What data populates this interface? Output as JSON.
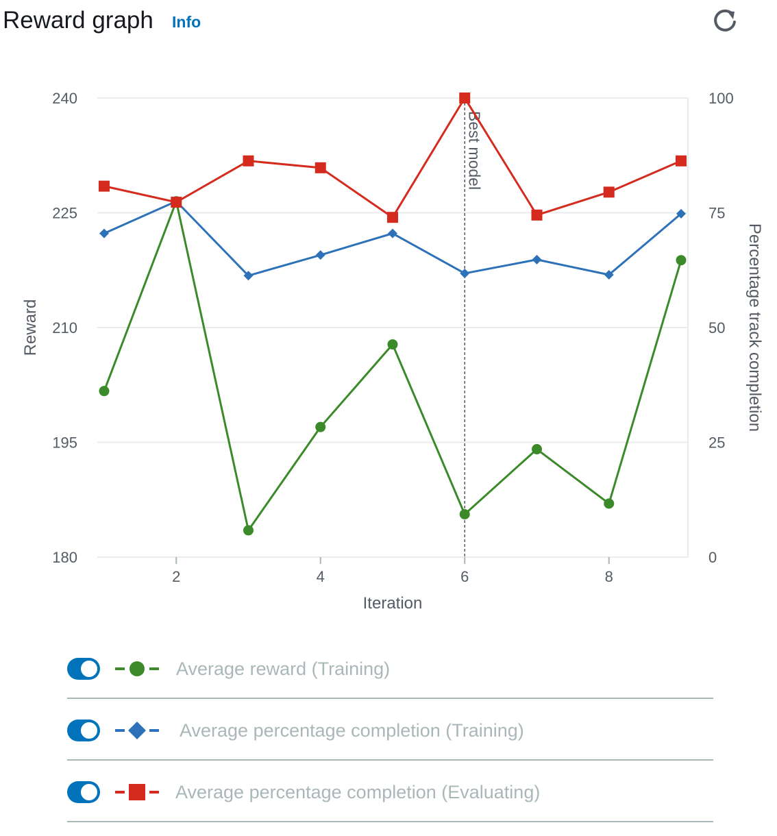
{
  "header": {
    "title": "Reward graph",
    "info_label": "Info",
    "refresh_icon": "refresh-icon"
  },
  "colors": {
    "reward_training": "#3b8a2a",
    "completion_training": "#2d72b8",
    "completion_evaluating": "#d52b1e",
    "toggle_on": "#0073bb",
    "legend_text": "#aab7b8",
    "grid": "#e9ebed",
    "axis_text": "#545b64"
  },
  "chart_data": {
    "type": "line",
    "x": [
      1,
      2,
      3,
      4,
      5,
      6,
      7,
      8,
      9
    ],
    "xlabel": "Iteration",
    "ylabel": "Reward",
    "y2label": "Percentage track completion",
    "xlim": [
      1,
      9
    ],
    "ylim": [
      180,
      240
    ],
    "y2lim": [
      0,
      100
    ],
    "xticks": [
      2,
      4,
      6,
      8
    ],
    "yticks": [
      180,
      195,
      210,
      225,
      240
    ],
    "y2ticks": [
      0,
      25,
      50,
      75,
      100
    ],
    "grid": true,
    "annotation": {
      "x": 6,
      "label": "Best model"
    },
    "series": [
      {
        "name": "Average reward (Training)",
        "axis": "left",
        "marker": "circle",
        "values": [
          201.7,
          226.5,
          183.5,
          197,
          207.8,
          185.6,
          194.1,
          187,
          218.8
        ]
      },
      {
        "name": "Average percentage completion (Training)",
        "axis": "right",
        "marker": "diamond",
        "values": [
          70.5,
          77.5,
          61.3,
          65.8,
          70.5,
          61.8,
          64.8,
          61.5,
          74.8
        ]
      },
      {
        "name": "Average percentage completion (Evaluating)",
        "axis": "right",
        "marker": "square",
        "values": [
          80.8,
          77.3,
          86.3,
          84.8,
          74,
          100,
          74.5,
          79.5,
          86.3
        ]
      }
    ]
  },
  "legend": [
    {
      "label": "Average reward (Training)",
      "marker": "circle",
      "enabled": true
    },
    {
      "label": "Average percentage completion (Training)",
      "marker": "diamond",
      "enabled": true
    },
    {
      "label": "Average percentage completion (Evaluating)",
      "marker": "square",
      "enabled": true
    }
  ]
}
